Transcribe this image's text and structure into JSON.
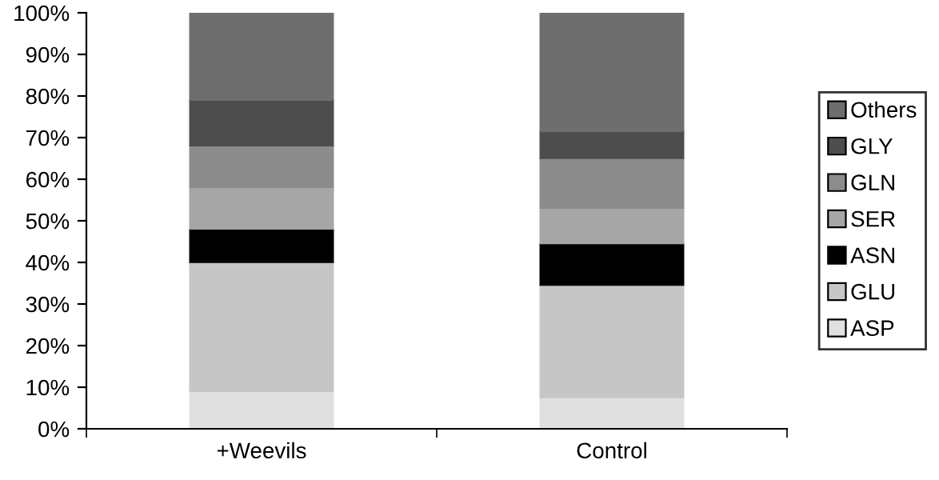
{
  "chart_data": {
    "type": "bar",
    "stacked": true,
    "categories": [
      "+Weevils",
      "Control"
    ],
    "series": [
      {
        "name": "ASP",
        "color": "#e0e0e0",
        "values": [
          9,
          7.5
        ]
      },
      {
        "name": "GLU",
        "color": "#c6c6c6",
        "values": [
          31,
          27
        ]
      },
      {
        "name": "ASN",
        "color": "#000000",
        "values": [
          8,
          10
        ]
      },
      {
        "name": "SER",
        "color": "#a6a6a6",
        "values": [
          10,
          8.5
        ]
      },
      {
        "name": "GLN",
        "color": "#8c8c8c",
        "values": [
          10,
          12
        ]
      },
      {
        "name": "GLY",
        "color": "#4d4d4d",
        "values": [
          11,
          6.5
        ]
      },
      {
        "name": "Others",
        "color": "#6e6e6e",
        "values": [
          21,
          28.5
        ]
      }
    ],
    "ylim": [
      0,
      100
    ],
    "yticks": [
      {
        "value": 0,
        "label": "0%"
      },
      {
        "value": 10,
        "label": "10%"
      },
      {
        "value": 20,
        "label": "20%"
      },
      {
        "value": 30,
        "label": "30%"
      },
      {
        "value": 40,
        "label": "40%"
      },
      {
        "value": 50,
        "label": "50%"
      },
      {
        "value": 60,
        "label": "60%"
      },
      {
        "value": 70,
        "label": "70%"
      },
      {
        "value": 80,
        "label": "80%"
      },
      {
        "value": 90,
        "label": "90%"
      },
      {
        "value": 100,
        "label": "100%"
      }
    ],
    "grid": false,
    "legend": "right"
  }
}
